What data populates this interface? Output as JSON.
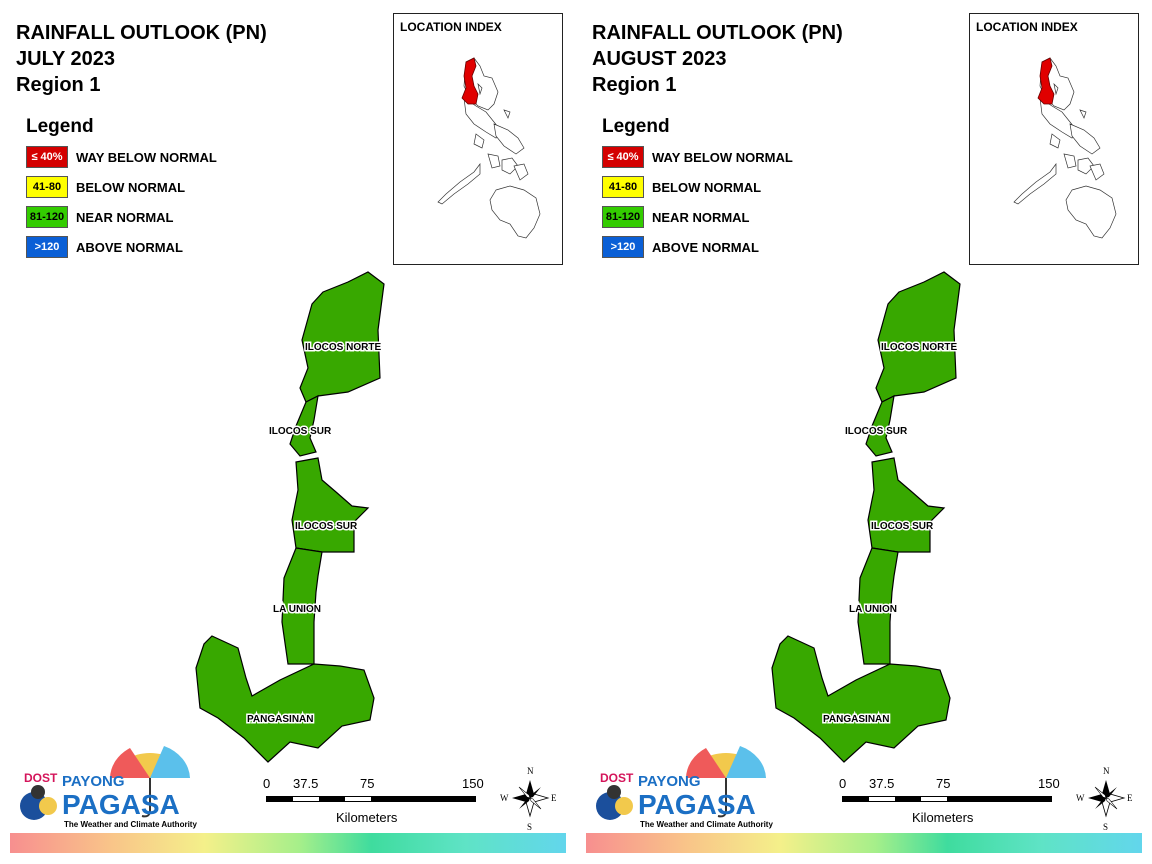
{
  "panels": [
    {
      "title": "RAINFALL OUTLOOK (PN)",
      "month": "JULY 2023",
      "region": "Region 1",
      "legend_title": "Legend",
      "legend": [
        {
          "range": "≤ 40%",
          "label": "WAY BELOW NORMAL",
          "color": "#d40000",
          "text_color": "#ffffff"
        },
        {
          "range": "41-80",
          "label": "BELOW NORMAL",
          "color": "#ffff00",
          "text_color": "#000000"
        },
        {
          "range": "81-120",
          "label": "NEAR NORMAL",
          "color": "#33cc00",
          "text_color": "#000000"
        },
        {
          "range": ">120",
          "label": "ABOVE NORMAL",
          "color": "#0a5fd6",
          "text_color": "#ffffff"
        }
      ],
      "location_index_title": "LOCATION INDEX",
      "provinces": [
        {
          "name": "ILOCOS NORTE",
          "category": "NEAR NORMAL"
        },
        {
          "name": "ILOCOS SUR",
          "category": "NEAR NORMAL"
        },
        {
          "name": "ILOCOS SUR",
          "category": "NEAR NORMAL"
        },
        {
          "name": "LA UNION",
          "category": "NEAR NORMAL"
        },
        {
          "name": "PANGASINAN",
          "category": "NEAR NORMAL"
        }
      ],
      "scale": {
        "ticks": [
          "0",
          "37.5",
          "75",
          "150"
        ],
        "unit": "Kilometers"
      },
      "compass": {
        "n": "N",
        "s": "S",
        "e": "E",
        "w": "W"
      },
      "logo": {
        "dost": "DOST",
        "payong": "PAYONG",
        "pagasa": "PAGASA",
        "tagline": "The Weather and Climate Authority"
      }
    },
    {
      "title": "RAINFALL OUTLOOK (PN)",
      "month": "AUGUST 2023",
      "region": "Region 1",
      "legend_title": "Legend",
      "legend": [
        {
          "range": "≤ 40%",
          "label": "WAY BELOW NORMAL",
          "color": "#d40000",
          "text_color": "#ffffff"
        },
        {
          "range": "41-80",
          "label": "BELOW NORMAL",
          "color": "#ffff00",
          "text_color": "#000000"
        },
        {
          "range": "81-120",
          "label": "NEAR NORMAL",
          "color": "#33cc00",
          "text_color": "#000000"
        },
        {
          "range": ">120",
          "label": "ABOVE NORMAL",
          "color": "#0a5fd6",
          "text_color": "#ffffff"
        }
      ],
      "location_index_title": "LOCATION INDEX",
      "provinces": [
        {
          "name": "ILOCOS NORTE",
          "category": "NEAR NORMAL"
        },
        {
          "name": "ILOCOS SUR",
          "category": "NEAR NORMAL"
        },
        {
          "name": "ILOCOS SUR",
          "category": "NEAR NORMAL"
        },
        {
          "name": "LA UNION",
          "category": "NEAR NORMAL"
        },
        {
          "name": "PANGASINAN",
          "category": "NEAR NORMAL"
        }
      ],
      "scale": {
        "ticks": [
          "0",
          "37.5",
          "75",
          "150"
        ],
        "unit": "Kilometers"
      },
      "compass": {
        "n": "N",
        "s": "S",
        "e": "E",
        "w": "W"
      },
      "logo": {
        "dost": "DOST",
        "payong": "PAYONG",
        "pagasa": "PAGASA",
        "tagline": "The Weather and Climate Authority"
      }
    }
  ],
  "colors": {
    "region_fill": "#38a800",
    "highlight": "#e00000"
  }
}
